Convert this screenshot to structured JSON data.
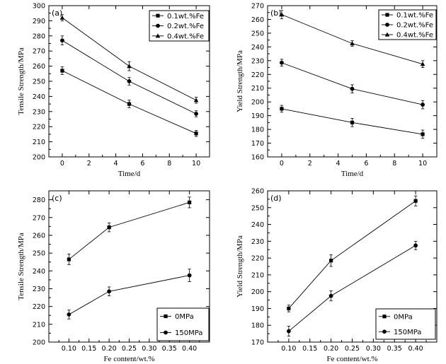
{
  "chart_data": [
    {
      "type": "line",
      "panel_label": "(a)",
      "xlabel": "Time/d",
      "ylabel": "Tensile Strength/MPa",
      "xlim": [
        -1,
        11
      ],
      "ylim": [
        200,
        300
      ],
      "xticks": [
        "0",
        "2",
        "4",
        "6",
        "8",
        "10"
      ],
      "xtick_values": [
        0,
        2,
        4,
        6,
        8,
        10
      ],
      "yticks": [
        "200",
        "210",
        "220",
        "230",
        "240",
        "250",
        "260",
        "270",
        "280",
        "290",
        "300"
      ],
      "ytick_values": [
        200,
        210,
        220,
        230,
        240,
        250,
        260,
        270,
        280,
        290,
        300
      ],
      "legend_position": "top-right",
      "x": [
        0,
        5,
        10
      ],
      "series": [
        {
          "name": "0.1wt.%Fe",
          "marker": "square",
          "values": [
            257,
            235,
            215.5
          ],
          "err": [
            2.5,
            2.5,
            2
          ]
        },
        {
          "name": "0.2wt.%Fe",
          "marker": "circle",
          "values": [
            277,
            250,
            228.5
          ],
          "err": [
            3,
            2.5,
            2
          ]
        },
        {
          "name": "0.4wt.%Fe",
          "marker": "triangle",
          "values": [
            292,
            260,
            237.5
          ],
          "err": [
            2,
            3,
            2
          ]
        }
      ]
    },
    {
      "type": "line",
      "panel_label": "(b)",
      "xlabel": "Time/d",
      "ylabel": "Yield Strength/MPa",
      "xlim": [
        -1,
        11
      ],
      "ylim": [
        160,
        270
      ],
      "xticks": [
        "0",
        "2",
        "4",
        "6",
        "8",
        "10"
      ],
      "xtick_values": [
        0,
        2,
        4,
        6,
        8,
        10
      ],
      "yticks": [
        "160",
        "170",
        "180",
        "190",
        "200",
        "210",
        "220",
        "230",
        "240",
        "250",
        "260",
        "270"
      ],
      "ytick_values": [
        160,
        170,
        180,
        190,
        200,
        210,
        220,
        230,
        240,
        250,
        260,
        270
      ],
      "legend_position": "top-right",
      "x": [
        0,
        5,
        10
      ],
      "series": [
        {
          "name": "0.1wt.%Fe",
          "marker": "square",
          "values": [
            195,
            185,
            176.5
          ],
          "err": [
            2.5,
            3,
            3
          ]
        },
        {
          "name": "0.2wt.%Fe",
          "marker": "circle",
          "values": [
            228.5,
            209.5,
            198
          ],
          "err": [
            2.5,
            3,
            3
          ]
        },
        {
          "name": "0.4wt.%Fe",
          "marker": "triangle",
          "values": [
            263.5,
            242.5,
            227.5
          ],
          "err": [
            3,
            2,
            2.5
          ]
        }
      ]
    },
    {
      "type": "line",
      "panel_label": "(c)",
      "xlabel": "Fe content/wt.%",
      "ylabel": "Tensile Strength/MPa",
      "xlim": [
        0.05,
        0.45
      ],
      "ylim": [
        200,
        285
      ],
      "xticks": [
        "0.10",
        "0.15",
        "0.20",
        "0.25",
        "0.30",
        "0.35",
        "0.40"
      ],
      "xtick_values": [
        0.1,
        0.15,
        0.2,
        0.25,
        0.3,
        0.35,
        0.4
      ],
      "yticks": [
        "200",
        "210",
        "220",
        "230",
        "240",
        "250",
        "260",
        "270",
        "280"
      ],
      "ytick_values": [
        200,
        210,
        220,
        230,
        240,
        250,
        260,
        270,
        280
      ],
      "legend_position": "bottom-right",
      "x": [
        0.1,
        0.2,
        0.4
      ],
      "series": [
        {
          "name": "0MPa",
          "marker": "square",
          "values": [
            246.5,
            264.5,
            278.5
          ],
          "err": [
            3,
            2.5,
            3
          ]
        },
        {
          "name": "150MPa",
          "marker": "circle",
          "values": [
            215.5,
            228.5,
            237.5
          ],
          "err": [
            2.5,
            2.5,
            3.5
          ]
        }
      ]
    },
    {
      "type": "line",
      "panel_label": "(d)",
      "xlabel": "Fe content/wt.%",
      "ylabel": "Yield Strength/MPa",
      "xlim": [
        0.05,
        0.45
      ],
      "ylim": [
        170,
        260
      ],
      "xticks": [
        "0.10",
        "0.15",
        "0.20",
        "0.25",
        "0.30",
        "0.35",
        "0.40"
      ],
      "xtick_values": [
        0.1,
        0.15,
        0.2,
        0.25,
        0.3,
        0.35,
        0.4
      ],
      "yticks": [
        "170",
        "180",
        "190",
        "200",
        "210",
        "220",
        "230",
        "240",
        "250",
        "260"
      ],
      "ytick_values": [
        170,
        180,
        190,
        200,
        210,
        220,
        230,
        240,
        250,
        260
      ],
      "legend_position": "bottom-right",
      "x": [
        0.1,
        0.2,
        0.4
      ],
      "series": [
        {
          "name": "0MPa",
          "marker": "square",
          "values": [
            190,
            218.5,
            254
          ],
          "err": [
            2,
            3.5,
            3
          ]
        },
        {
          "name": "150MPa",
          "marker": "circle",
          "values": [
            176.5,
            197.5,
            227.5
          ],
          "err": [
            3,
            3,
            2.5
          ]
        }
      ]
    }
  ]
}
